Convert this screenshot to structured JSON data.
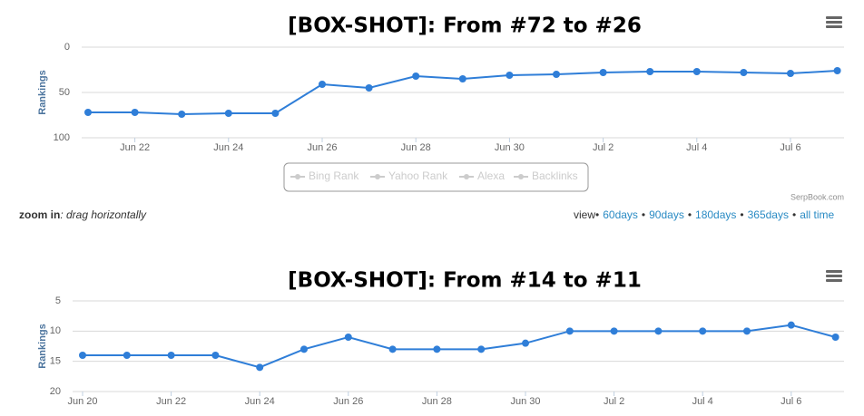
{
  "chart_data": [
    {
      "type": "line",
      "title": "[BOX-SHOT]: From #72 to #26",
      "y_label": "Rankings",
      "categories": [
        null,
        "Jun 22",
        null,
        "Jun 24",
        null,
        "Jun 26",
        null,
        "Jun 28",
        null,
        "Jun 30",
        null,
        "Jul 2",
        null,
        "Jul 4",
        null,
        "Jul 6",
        null
      ],
      "values": [
        72,
        72,
        74,
        73,
        73,
        41,
        45,
        32,
        35,
        31,
        30,
        28,
        27,
        27,
        28,
        29,
        26
      ],
      "color": "#2f7ed8",
      "ylim": [
        0,
        100
      ],
      "yticks": [
        0,
        50,
        100
      ],
      "reversed": true,
      "grid": true,
      "legend": [
        "Bing Rank",
        "Yahoo Rank",
        "Alexa",
        "Backlinks"
      ],
      "credit": "SerpBook.com"
    },
    {
      "type": "line",
      "title": "[BOX-SHOT]: From #14 to #11",
      "y_label": "Rankings",
      "categories": [
        "Jun 20",
        null,
        "Jun 22",
        null,
        "Jun 24",
        null,
        "Jun 26",
        null,
        "Jun 28",
        null,
        "Jun 30",
        null,
        "Jul 2",
        null,
        "Jul 4",
        null,
        "Jul 6",
        null
      ],
      "values": [
        14,
        14,
        14,
        14,
        16,
        13,
        11,
        13,
        13,
        13,
        12,
        10,
        10,
        10,
        10,
        10,
        9,
        11
      ],
      "color": "#2f7ed8",
      "ylim": [
        5,
        20
      ],
      "yticks": [
        5,
        10,
        15,
        20
      ],
      "reversed": true,
      "grid": true
    }
  ],
  "controls": {
    "zoom_label": "zoom in",
    "zoom_text": ": drag horizontally",
    "view_label": "view",
    "separator": "•",
    "links": [
      "60days",
      "90days",
      "180days",
      "365days",
      "all time"
    ]
  }
}
